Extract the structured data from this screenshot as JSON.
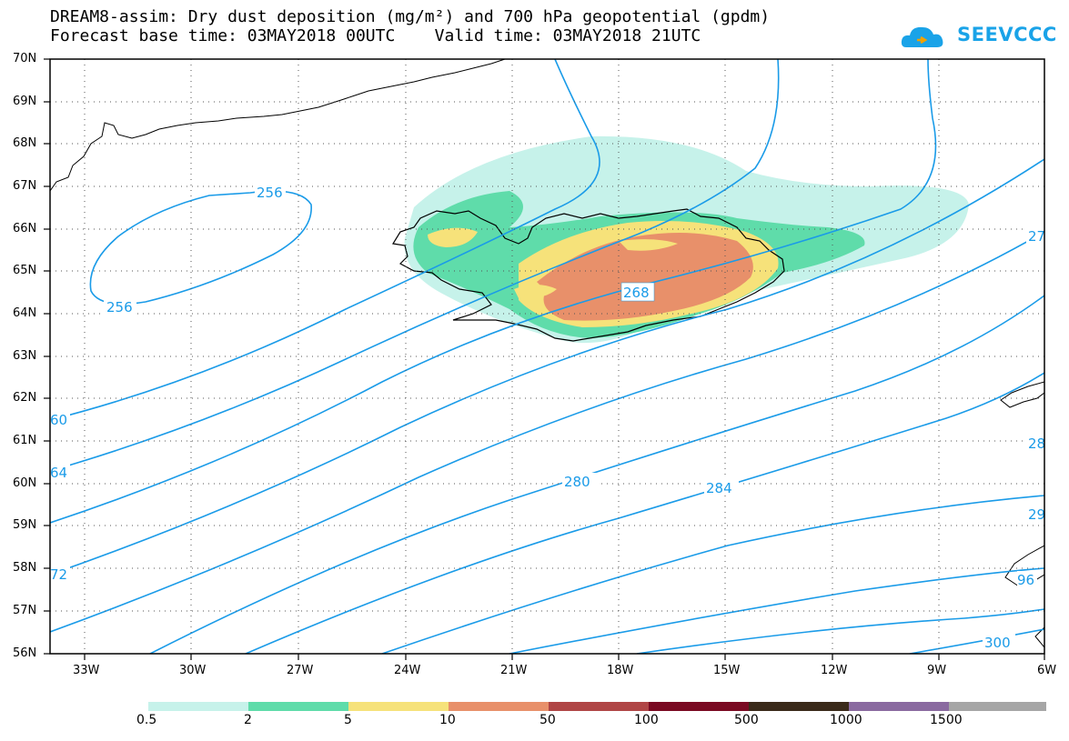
{
  "title": {
    "line1": "DREAM8-assim: Dry dust deposition (mg/m²) and 700 hPa geopotential (gpdm)",
    "line2": "Forecast base time: 03MAY2018 00UTC    Valid time: 03MAY2018 21UTC"
  },
  "logo": {
    "text": "SEEVCCC",
    "icon": "cloud-icon",
    "color": "#1aa3e8"
  },
  "map": {
    "lat_labels": [
      "70N",
      "69N",
      "68N",
      "67N",
      "66N",
      "65N",
      "64N",
      "63N",
      "62N",
      "61N",
      "60N",
      "59N",
      "58N",
      "57N",
      "56N"
    ],
    "lon_labels": [
      "33W",
      "30W",
      "27W",
      "24W",
      "21W",
      "18W",
      "15W",
      "12W",
      "9W",
      "6W"
    ],
    "contour_labels": [
      "256",
      "256",
      "268",
      "280",
      "284",
      "60",
      "64",
      "72",
      "27",
      "28",
      "29",
      "300",
      "96"
    ],
    "contour_color": "#1a9be8",
    "grid": true
  },
  "colorbar": {
    "labels": [
      "0.5",
      "2",
      "5",
      "10",
      "50",
      "100",
      "500",
      "1000",
      "1500"
    ],
    "colors": [
      "#c6f2ea",
      "#5fdcaa",
      "#f6e27a",
      "#e8906a",
      "#b04545",
      "#7a0a22",
      "#3a2a1a",
      "#8a6aa0",
      "#a6a6a6"
    ]
  }
}
